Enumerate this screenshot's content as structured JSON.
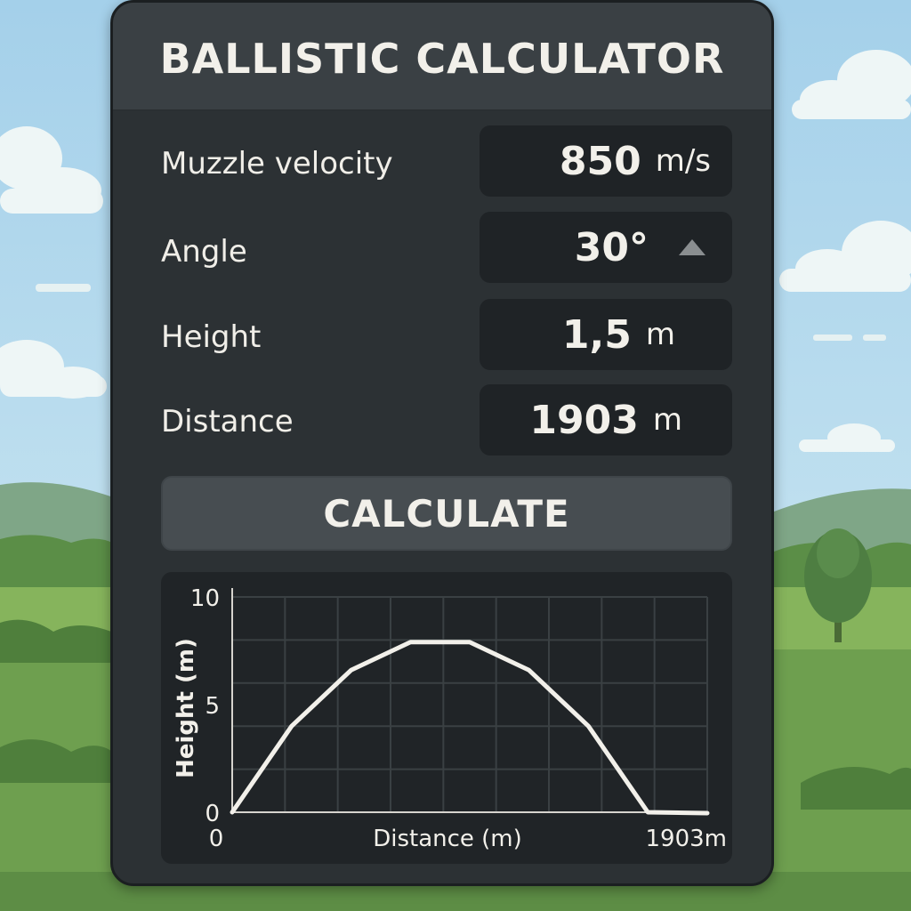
{
  "title": "BALLISTIC CALCULATOR",
  "fields": {
    "velocity": {
      "label": "Muzzle velocity",
      "value": "850",
      "unit": "m/s"
    },
    "angle": {
      "label": "Angle",
      "value": "30°"
    },
    "height": {
      "label": "Height",
      "value": "1,5",
      "unit": "m"
    },
    "distance": {
      "label": "Distance",
      "value": "1903",
      "unit": "m"
    }
  },
  "button": {
    "label": "CALCULATE"
  },
  "colors": {
    "panel": "#2c3134",
    "field": "#1f2326",
    "curve": "#f2f0ea",
    "grid": "#3a4043"
  },
  "chart_data": {
    "type": "line",
    "ylabel": "Height (m)",
    "xlabel": "Distance (m)",
    "ylim": [
      0,
      10
    ],
    "y_ticks": [
      "10",
      "5",
      "0"
    ],
    "x_ticks": [
      "0",
      "1903m"
    ],
    "xlim": [
      0,
      1903
    ],
    "grid": true,
    "series": [
      {
        "x": [
          0,
          238,
          476,
          714,
          951,
          1189,
          1427,
          1665,
          1903
        ],
        "values": [
          0,
          4.0,
          6.6,
          7.9,
          7.9,
          6.6,
          4.0,
          0.0,
          -0.9
        ]
      }
    ]
  }
}
